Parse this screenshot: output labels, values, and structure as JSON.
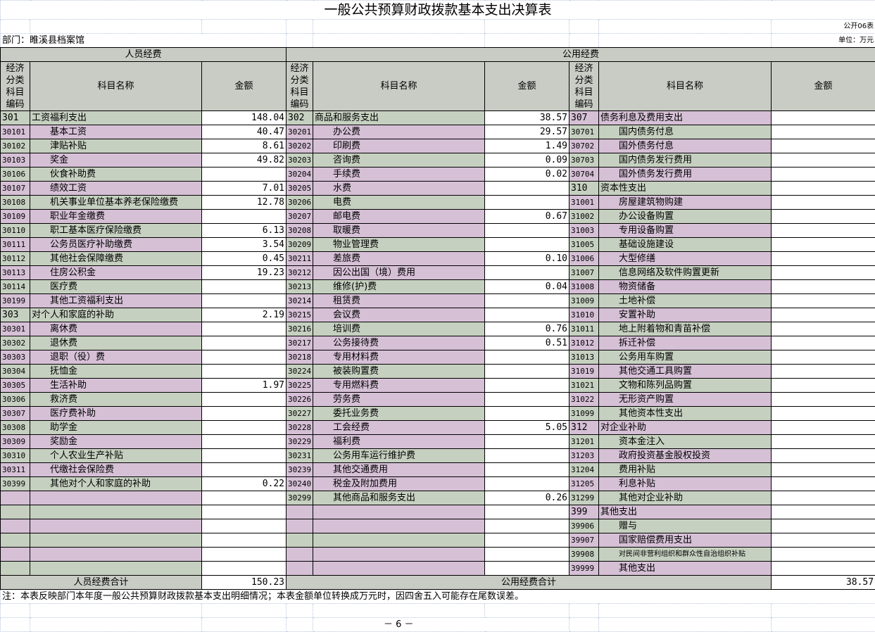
{
  "title": "一般公共预算财政拨款基本支出决算表",
  "form_no": "公开06表",
  "department": "部门：睢溪县档案馆",
  "unit": "单位：万元",
  "sections": {
    "personnel": "人员经费",
    "public": "公用经费"
  },
  "col_headers": {
    "code": "经济分类科目编码",
    "name": "科目名称",
    "amount": "金额"
  },
  "personnel_rows": [
    {
      "code": "301",
      "name": "工资福利支出",
      "amount": "148.04",
      "top": true
    },
    {
      "code": "30101",
      "name": "基本工资",
      "amount": "40.47"
    },
    {
      "code": "30102",
      "name": "津贴补贴",
      "amount": "8.61"
    },
    {
      "code": "30103",
      "name": "奖金",
      "amount": "49.82"
    },
    {
      "code": "30106",
      "name": "伙食补助费",
      "amount": ""
    },
    {
      "code": "30107",
      "name": "绩效工资",
      "amount": "7.01"
    },
    {
      "code": "30108",
      "name": "机关事业单位基本养老保险缴费",
      "amount": "12.78"
    },
    {
      "code": "30109",
      "name": "职业年金缴费",
      "amount": ""
    },
    {
      "code": "30110",
      "name": "职工基本医疗保险缴费",
      "amount": "6.13"
    },
    {
      "code": "30111",
      "name": "公务员医疗补助缴费",
      "amount": "3.54"
    },
    {
      "code": "30112",
      "name": "其他社会保障缴费",
      "amount": "0.45"
    },
    {
      "code": "30113",
      "name": "住房公积金",
      "amount": "19.23"
    },
    {
      "code": "30114",
      "name": "医疗费",
      "amount": ""
    },
    {
      "code": "30199",
      "name": "其他工资福利支出",
      "amount": ""
    },
    {
      "code": "303",
      "name": "对个人和家庭的补助",
      "amount": "2.19",
      "top": true
    },
    {
      "code": "30301",
      "name": "离休费",
      "amount": ""
    },
    {
      "code": "30302",
      "name": "退休费",
      "amount": ""
    },
    {
      "code": "30303",
      "name": "退职（役）费",
      "amount": ""
    },
    {
      "code": "30304",
      "name": "抚恤金",
      "amount": ""
    },
    {
      "code": "30305",
      "name": "生活补助",
      "amount": "1.97"
    },
    {
      "code": "30306",
      "name": "救济费",
      "amount": ""
    },
    {
      "code": "30307",
      "name": "医疗费补助",
      "amount": ""
    },
    {
      "code": "30308",
      "name": "助学金",
      "amount": ""
    },
    {
      "code": "30309",
      "name": "奖励金",
      "amount": ""
    },
    {
      "code": "30310",
      "name": "个人农业生产补贴",
      "amount": ""
    },
    {
      "code": "30311",
      "name": "代缴社会保险费",
      "amount": ""
    },
    {
      "code": "30399",
      "name": "其他对个人和家庭的补助",
      "amount": "0.22"
    }
  ],
  "goods_rows": [
    {
      "code": "302",
      "name": "商品和服务支出",
      "amount": "38.57",
      "top": true
    },
    {
      "code": "30201",
      "name": "办公费",
      "amount": "29.57"
    },
    {
      "code": "30202",
      "name": "印刷费",
      "amount": "1.49"
    },
    {
      "code": "30203",
      "name": "咨询费",
      "amount": "0.09"
    },
    {
      "code": "30204",
      "name": "手续费",
      "amount": "0.02"
    },
    {
      "code": "30205",
      "name": "水费",
      "amount": ""
    },
    {
      "code": "30206",
      "name": "电费",
      "amount": ""
    },
    {
      "code": "30207",
      "name": "邮电费",
      "amount": "0.67"
    },
    {
      "code": "30208",
      "name": "取暖费",
      "amount": ""
    },
    {
      "code": "30209",
      "name": "物业管理费",
      "amount": ""
    },
    {
      "code": "30211",
      "name": "差旅费",
      "amount": "0.10"
    },
    {
      "code": "30212",
      "name": "因公出国（境）费用",
      "amount": ""
    },
    {
      "code": "30213",
      "name": "维修(护)费",
      "amount": "0.04"
    },
    {
      "code": "30214",
      "name": "租赁费",
      "amount": ""
    },
    {
      "code": "30215",
      "name": "会议费",
      "amount": ""
    },
    {
      "code": "30216",
      "name": "培训费",
      "amount": "0.76"
    },
    {
      "code": "30217",
      "name": "公务接待费",
      "amount": "0.51"
    },
    {
      "code": "30218",
      "name": "专用材料费",
      "amount": ""
    },
    {
      "code": "30224",
      "name": "被装购置费",
      "amount": ""
    },
    {
      "code": "30225",
      "name": "专用燃料费",
      "amount": ""
    },
    {
      "code": "30226",
      "name": "劳务费",
      "amount": ""
    },
    {
      "code": "30227",
      "name": "委托业务费",
      "amount": ""
    },
    {
      "code": "30228",
      "name": "工会经费",
      "amount": "5.05"
    },
    {
      "code": "30229",
      "name": "福利费",
      "amount": ""
    },
    {
      "code": "30231",
      "name": "公务用车运行维护费",
      "amount": ""
    },
    {
      "code": "30239",
      "name": "其他交通费用",
      "amount": ""
    },
    {
      "code": "30240",
      "name": "税金及附加费用",
      "amount": ""
    },
    {
      "code": "30299",
      "name": "其他商品和服务支出",
      "amount": "0.26"
    }
  ],
  "other_rows": [
    {
      "code": "307",
      "name": "债务利息及费用支出",
      "amount": "",
      "top": true
    },
    {
      "code": "30701",
      "name": "国内债务付息",
      "amount": ""
    },
    {
      "code": "30702",
      "name": "国外债务付息",
      "amount": ""
    },
    {
      "code": "30703",
      "name": "国内债务发行费用",
      "amount": ""
    },
    {
      "code": "30704",
      "name": "国外债务发行费用",
      "amount": ""
    },
    {
      "code": "310",
      "name": "资本性支出",
      "amount": "",
      "top": true
    },
    {
      "code": "31001",
      "name": "房屋建筑物购建",
      "amount": ""
    },
    {
      "code": "31002",
      "name": "办公设备购置",
      "amount": ""
    },
    {
      "code": "31003",
      "name": "专用设备购置",
      "amount": ""
    },
    {
      "code": "31005",
      "name": "基础设施建设",
      "amount": ""
    },
    {
      "code": "31006",
      "name": "大型修缮",
      "amount": ""
    },
    {
      "code": "31007",
      "name": "信息网络及软件购置更新",
      "amount": ""
    },
    {
      "code": "31008",
      "name": "物资储备",
      "amount": ""
    },
    {
      "code": "31009",
      "name": "土地补偿",
      "amount": ""
    },
    {
      "code": "31010",
      "name": "安置补助",
      "amount": ""
    },
    {
      "code": "31011",
      "name": "地上附着物和青苗补偿",
      "amount": ""
    },
    {
      "code": "31012",
      "name": "拆迁补偿",
      "amount": ""
    },
    {
      "code": "31013",
      "name": "公务用车购置",
      "amount": ""
    },
    {
      "code": "31019",
      "name": "其他交通工具购置",
      "amount": ""
    },
    {
      "code": "31021",
      "name": "文物和陈列品购置",
      "amount": ""
    },
    {
      "code": "31022",
      "name": "无形资产购置",
      "amount": ""
    },
    {
      "code": "31099",
      "name": "其他资本性支出",
      "amount": ""
    },
    {
      "code": "312",
      "name": "对企业补助",
      "amount": "",
      "top": true
    },
    {
      "code": "31201",
      "name": "资本金注入",
      "amount": ""
    },
    {
      "code": "31203",
      "name": "政府投资基金股权投资",
      "amount": ""
    },
    {
      "code": "31204",
      "name": "费用补贴",
      "amount": ""
    },
    {
      "code": "31205",
      "name": "利息补贴",
      "amount": ""
    },
    {
      "code": "31299",
      "name": "其他对企业补助",
      "amount": ""
    },
    {
      "code": "399",
      "name": "其他支出",
      "amount": "",
      "top": true
    },
    {
      "code": "39906",
      "name": "赠与",
      "amount": ""
    },
    {
      "code": "39907",
      "name": "国家赔偿费用支出",
      "amount": ""
    },
    {
      "code": "39908",
      "name": "对民间非营利组织和群众性自治组织补贴",
      "amount": "",
      "tiny": true
    },
    {
      "code": "39999",
      "name": "其他支出",
      "amount": ""
    }
  ],
  "totals": {
    "personnel_label": "人员经费合计",
    "personnel_amount": "150.23",
    "public_label": "公用经费合计",
    "public_amount": "38.57"
  },
  "note": "注：本表反映部门本年度一般公共预算财政拨款基本支出明细情况；本表金额单位转换成万元时，因四舍五入可能存在尾数误差。",
  "page_number": "－ 6 －",
  "colors": {
    "header_bg": "#c8ccc4",
    "row_green": "#c6d0c0",
    "row_pink": "#d6c0d6"
  }
}
